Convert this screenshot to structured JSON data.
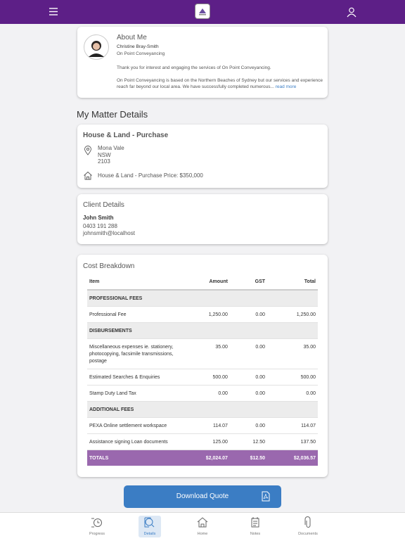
{
  "about": {
    "title": "About Me",
    "name": "Christine Bray-Smith",
    "company": "On Point Conveyancing",
    "intro": "Thank you for interest and engaging the services of On Point Conveyancing.",
    "body_lines": [
      "On Point Conveyancing is based on the Northern Beaches of Sydney but our services and experience",
      "reach far beyond our local area.  We have successfully completed numerous..."
    ],
    "read_more": "read more"
  },
  "section_title": "My Matter Details",
  "matter": {
    "title": "House & Land - Purchase",
    "address": [
      "Mona Vale",
      "NSW",
      "2103"
    ],
    "price": "House & Land - Purchase Price: $350,000"
  },
  "client": {
    "title": "Client Details",
    "name": "John Smith",
    "phone": "0403 191 288",
    "email": "johnsmith@localhost"
  },
  "costs": {
    "title": "Cost Breakdown",
    "columns": [
      "Item",
      "Amount",
      "GST",
      "Total"
    ],
    "rows": [
      {
        "section": "PROFESSIONAL FEES"
      },
      {
        "cells": [
          "Professional Fee",
          "1,250.00",
          "0.00",
          "1,250.00"
        ]
      },
      {
        "section": "DISBURSEMENTS"
      },
      {
        "cells": [
          "Miscellaneous expenses ie. stationery, photocopying, facsimile transmissions, postage",
          "35.00",
          "0.00",
          "35.00"
        ]
      },
      {
        "cells": [
          "Estimated Searches & Enquiries",
          "500.00",
          "0.00",
          "500.00"
        ]
      },
      {
        "cells": [
          "Stamp Duty Land Tax",
          "0.00",
          "0.00",
          "0.00"
        ]
      },
      {
        "section": "ADDITIONAL FEES"
      },
      {
        "cells": [
          "PEXA Online settlement workspace",
          "114.07",
          "0.00",
          "114.07"
        ]
      },
      {
        "cells": [
          "Assistance signing Loan documents",
          "125.00",
          "12.50",
          "137.50"
        ]
      }
    ],
    "totals": [
      "TOTALS",
      "$2,024.07",
      "$12.50",
      "$2,036.57"
    ]
  },
  "download_button": "Download Quote",
  "nav": [
    "Progress",
    "Details",
    "Home",
    "Notes",
    "Documents"
  ]
}
